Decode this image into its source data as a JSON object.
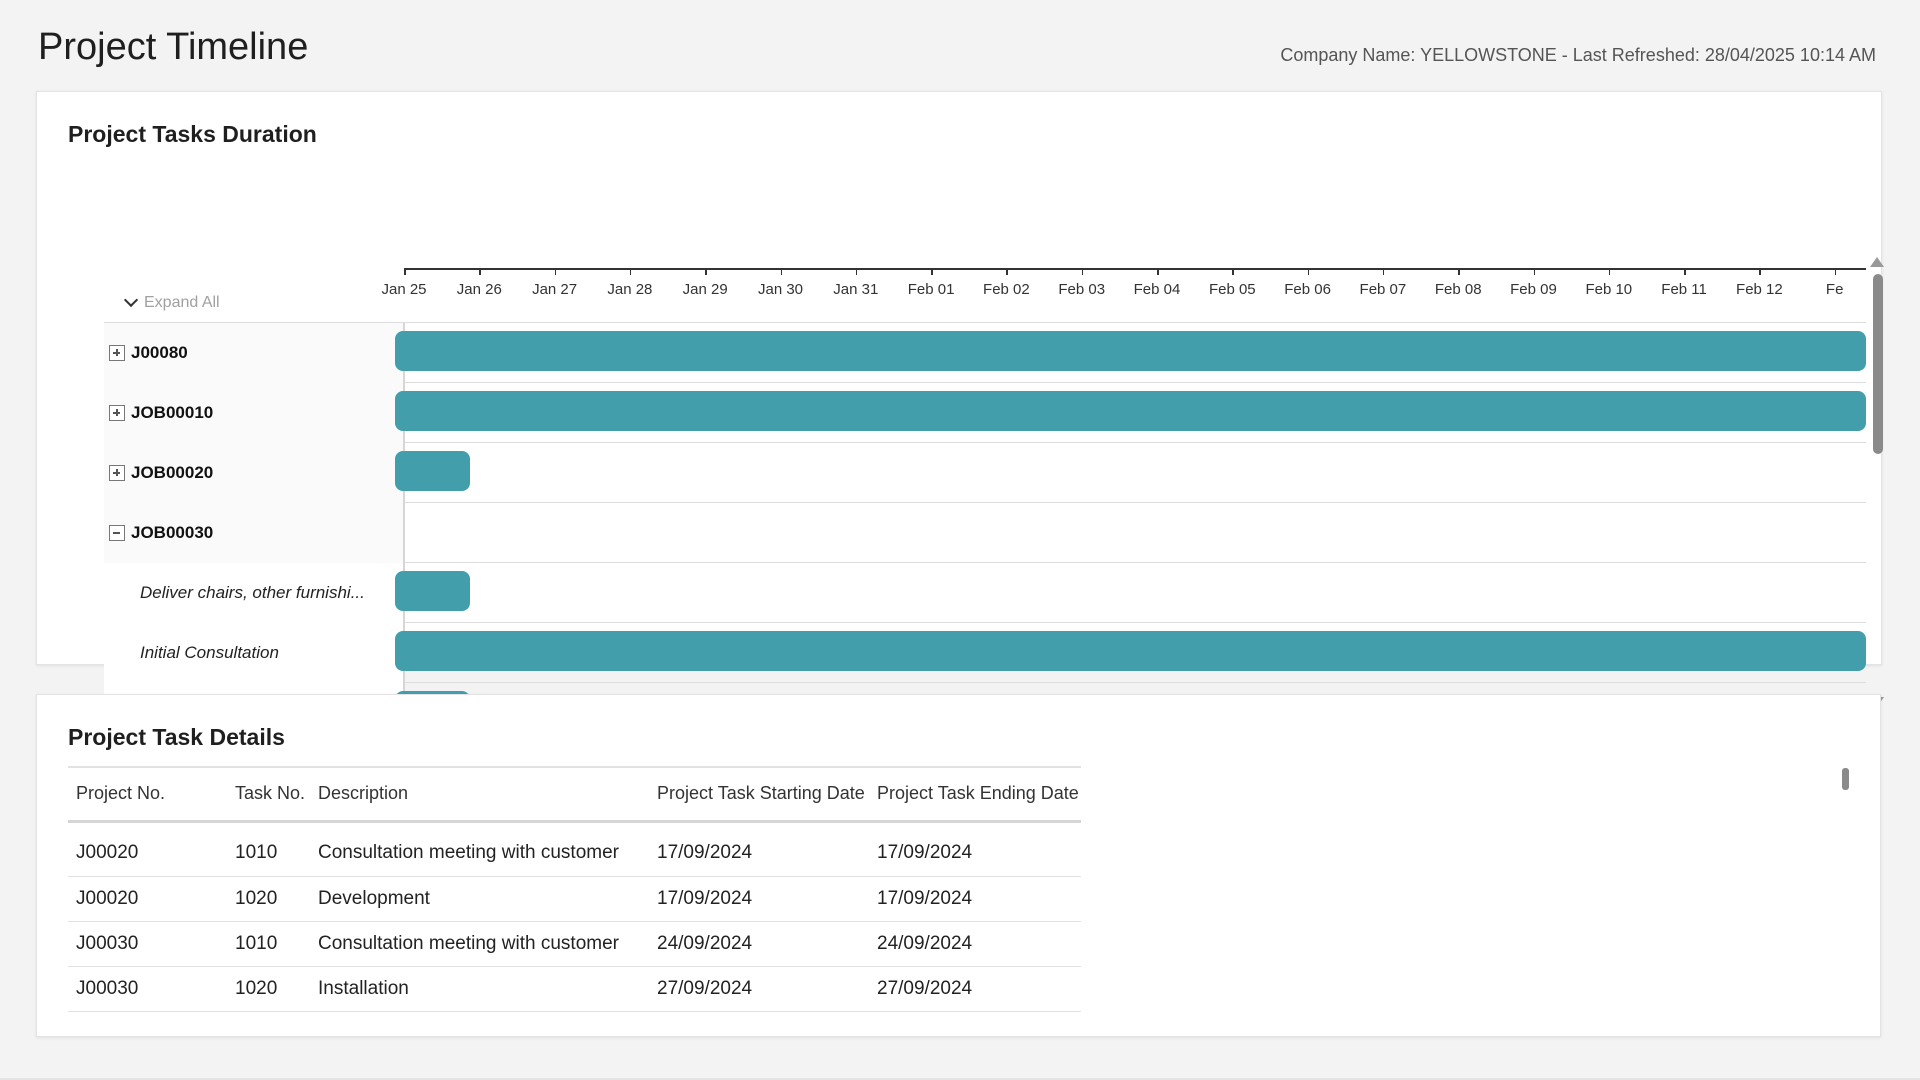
{
  "page": {
    "title": "Project Timeline",
    "company_info": "Company Name: YELLOWSTONE - Last Refreshed: 28/04/2025 10:14 AM"
  },
  "gantt": {
    "title": "Project Tasks Duration",
    "expand_all_label": "Expand All",
    "bar_color": "#439eac",
    "timeline_dates": [
      "Jan 25",
      "Jan 26",
      "Jan 27",
      "Jan 28",
      "Jan 29",
      "Jan 30",
      "Jan 31",
      "Feb 01",
      "Feb 02",
      "Feb 03",
      "Feb 04",
      "Feb 05",
      "Feb 06",
      "Feb 07",
      "Feb 08",
      "Feb 09",
      "Feb 10",
      "Feb 11",
      "Feb 12",
      "Fe"
    ],
    "rows": [
      {
        "label": "J00080",
        "type": "group",
        "expanded": false,
        "bar_start": "Jan 25",
        "bar_end": "beyond visible range"
      },
      {
        "label": "JOB00010",
        "type": "group",
        "expanded": false,
        "bar_start": "Jan 25",
        "bar_end": "beyond visible range"
      },
      {
        "label": "JOB00020",
        "type": "group",
        "expanded": false,
        "bar_start": "Jan 25",
        "bar_end": "Jan 26"
      },
      {
        "label": "JOB00030",
        "type": "group",
        "expanded": true,
        "bar_start": null,
        "bar_end": null
      },
      {
        "label": "Deliver chairs, other furnishi...",
        "type": "task",
        "bar_start": "Jan 25",
        "bar_end": "Jan 26"
      },
      {
        "label": "Initial Consultation",
        "type": "task",
        "bar_start": "Jan 25",
        "bar_end": "beyond visible range"
      },
      {
        "label": "",
        "type": "task",
        "bar_start": "Jan 25",
        "bar_end": "Jan 26"
      }
    ]
  },
  "details": {
    "title": "Project Task Details",
    "columns": [
      "Project No.",
      "Task No.",
      "Description",
      "Project Task Starting Date",
      "Project Task Ending Date"
    ],
    "rows": [
      [
        "J00020",
        "1010",
        "Consultation meeting with customer",
        "17/09/2024",
        "17/09/2024"
      ],
      [
        "J00020",
        "1020",
        "Development",
        "17/09/2024",
        "17/09/2024"
      ],
      [
        "J00030",
        "1010",
        "Consultation meeting with customer",
        "24/09/2024",
        "24/09/2024"
      ],
      [
        "J00030",
        "1020",
        "Installation",
        "27/09/2024",
        "27/09/2024"
      ]
    ]
  }
}
